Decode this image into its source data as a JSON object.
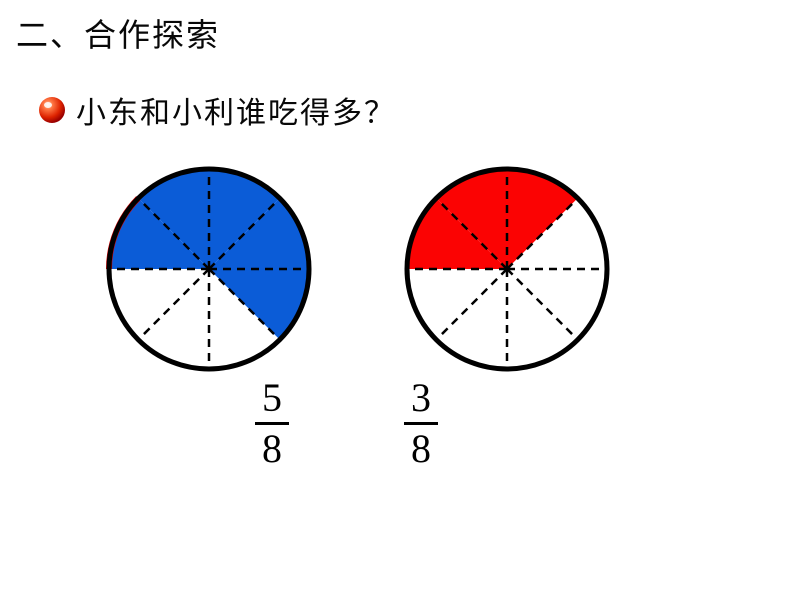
{
  "section_title": "二、合作探索",
  "question": "小东和小利谁吃得多？",
  "bullet": {
    "gradient_inner": "#ff9966",
    "gradient_outer": "#cc0000",
    "highlight": "#ffffff"
  },
  "chart_left": {
    "type": "pie",
    "slices": 8,
    "filled_slices": 5,
    "fill_color": "#0b5cd7",
    "empty_color": "#ffffff",
    "stroke_color": "#000000",
    "stroke_width": 5,
    "dash_pattern": "8,6",
    "red_edge_arc": true,
    "red_arc_color": "#e50000",
    "start_angle": 180,
    "fraction_num": "5",
    "fraction_den": "8"
  },
  "chart_right": {
    "type": "pie",
    "slices": 8,
    "filled_slices": 3,
    "fill_color": "#fb0303",
    "empty_color": "#ffffff",
    "stroke_color": "#000000",
    "stroke_width": 5,
    "dash_pattern": "8,6",
    "start_angle": 180,
    "fraction_num": "3",
    "fraction_den": "8"
  },
  "fraction_color": "#000000"
}
